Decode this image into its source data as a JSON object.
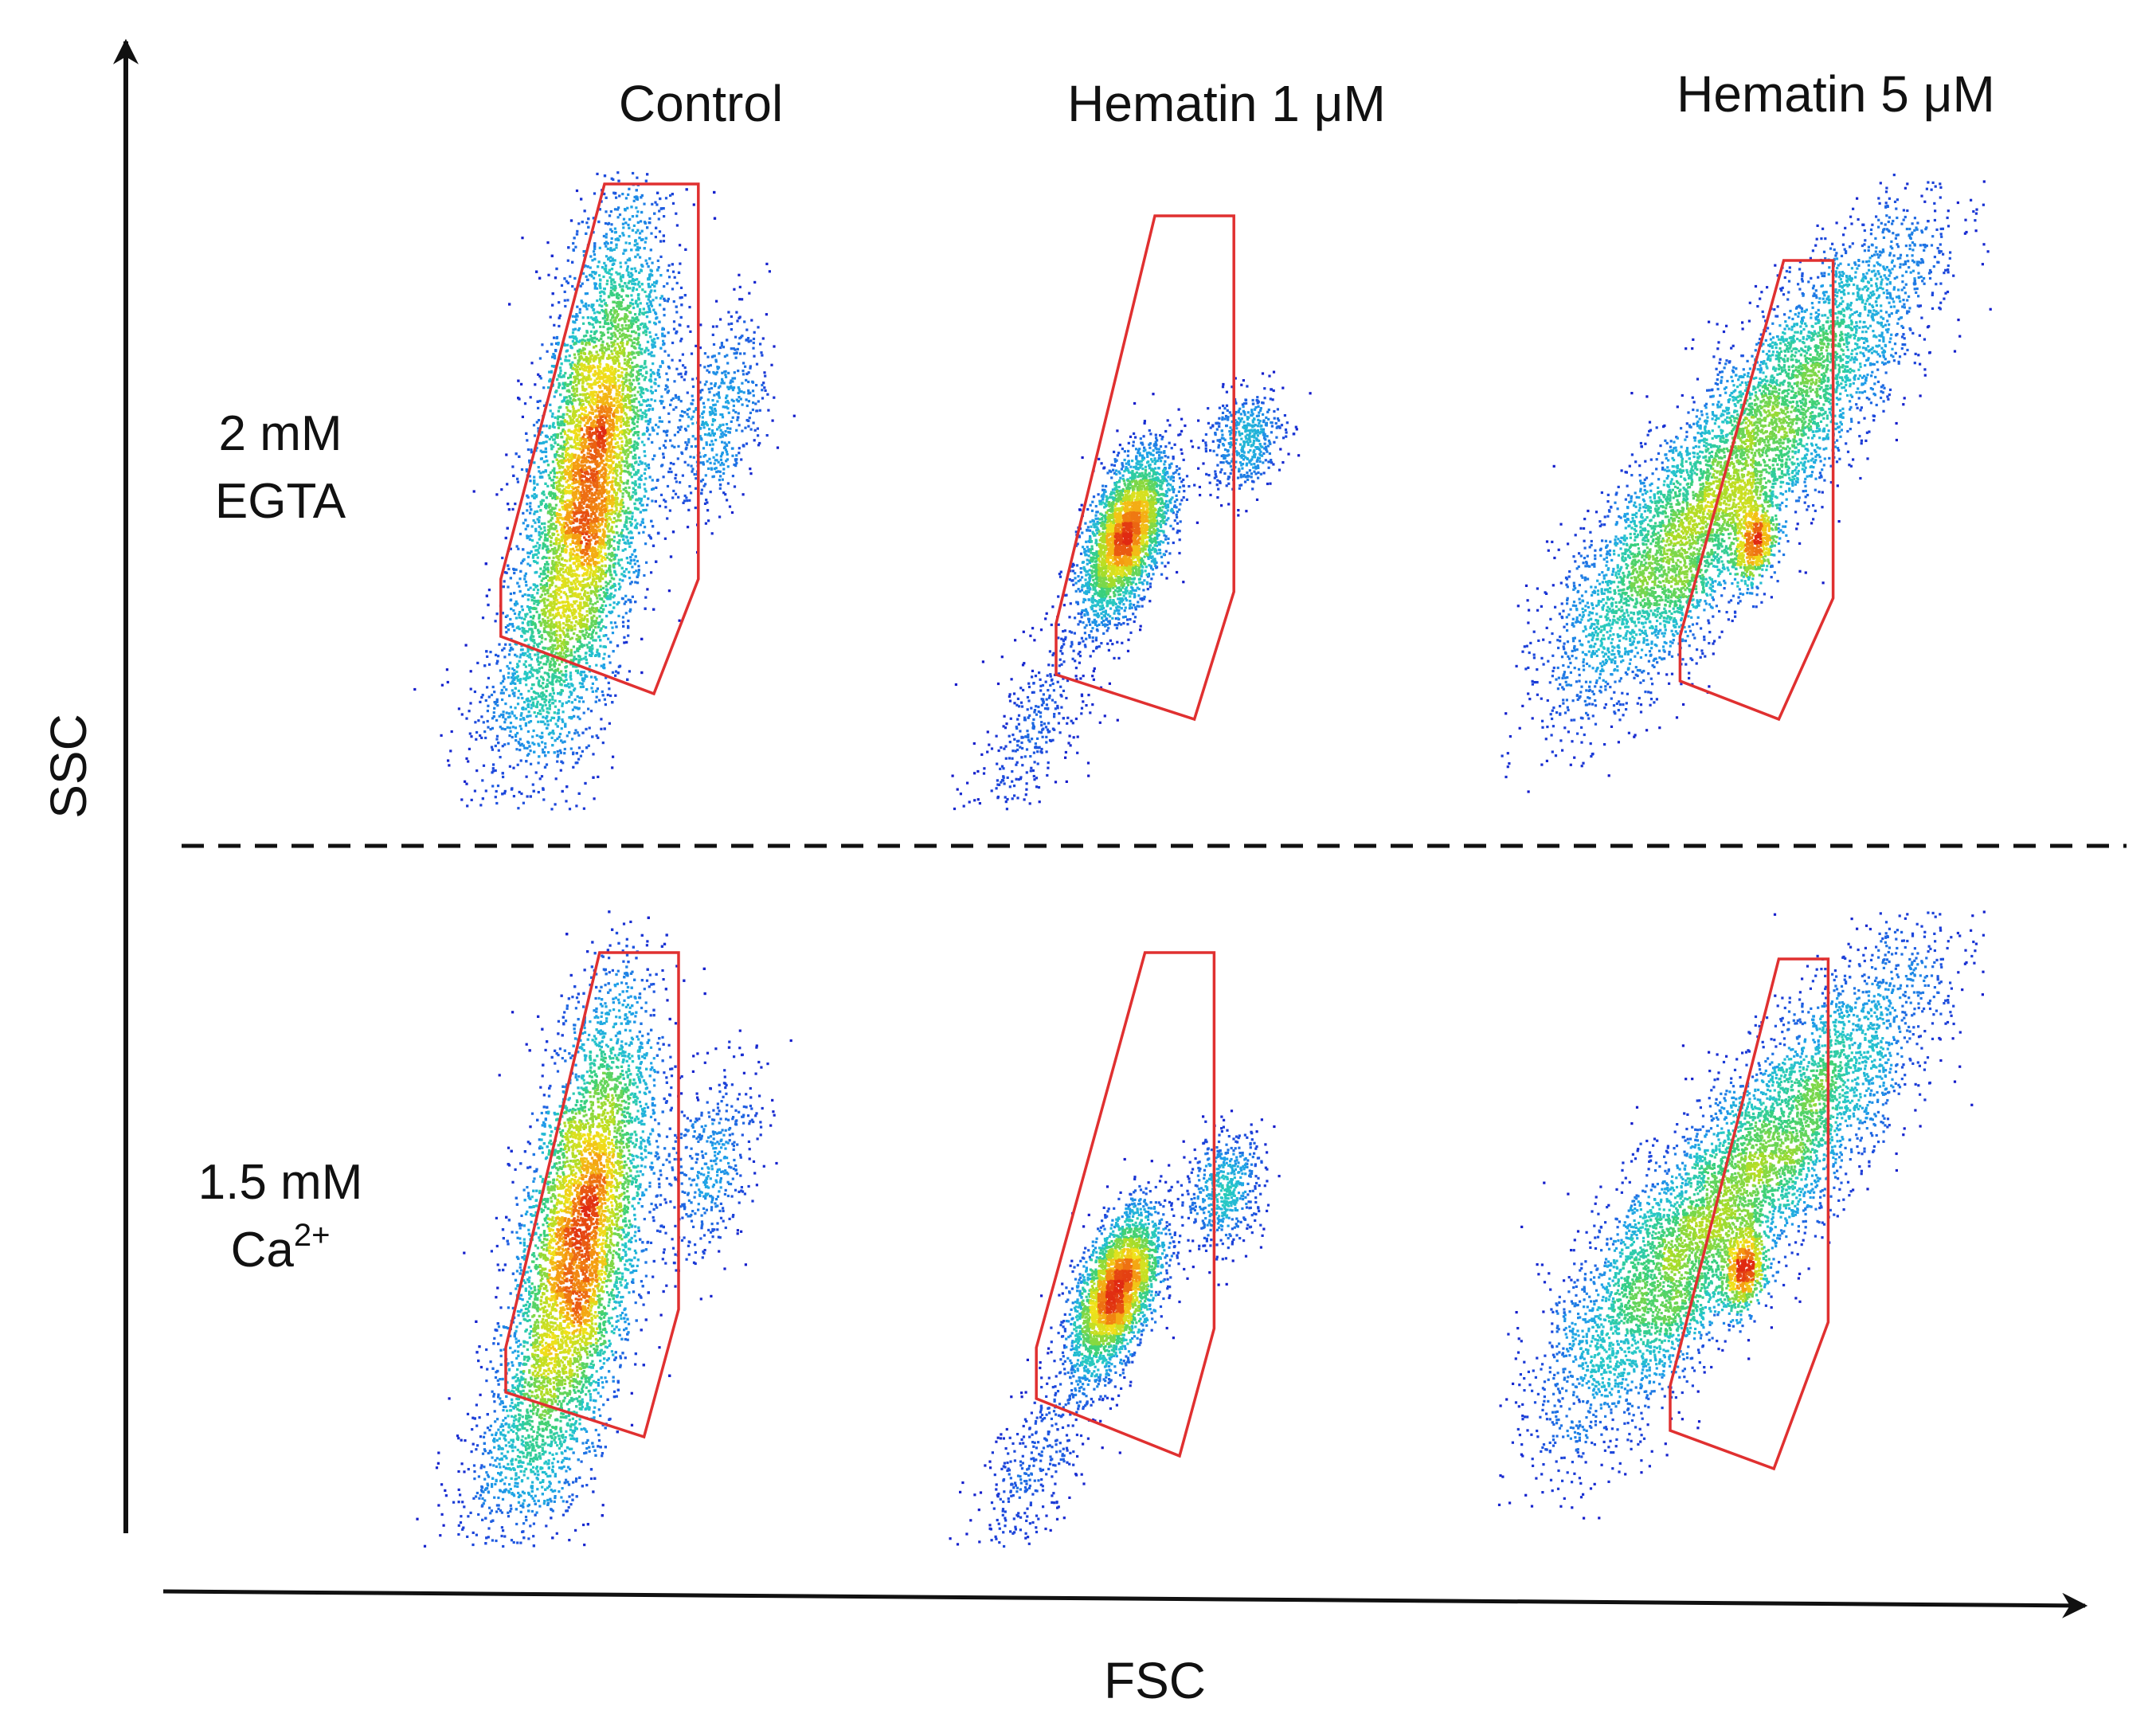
{
  "chart_data": {
    "type": "scatter",
    "title": "",
    "xlabel": "FSC",
    "ylabel": "SSC",
    "column_titles": [
      "Control",
      "Hematin 1 μM",
      "Hematin 5 μM"
    ],
    "row_labels": [
      {
        "line1": "2 mM",
        "line2": "EGTA",
        "sup": ""
      },
      {
        "line1": "1.5 mM",
        "line2": "Ca",
        "sup": "2+"
      }
    ],
    "gate_color": "#e03030",
    "colormap": [
      "#1414c8",
      "#1f55e0",
      "#1fa0e8",
      "#26c8c8",
      "#3ad07a",
      "#a6dc2a",
      "#f0e21a",
      "#f59a12",
      "#e02a12"
    ],
    "panels": [
      {
        "row": 0,
        "col": 0,
        "n": 9000,
        "population": [
          {
            "fsc": 0.42,
            "ssc": 0.52,
            "sd_fsc": 0.07,
            "sd_ssc": 0.2,
            "rho": 0.55,
            "weight": 0.88
          },
          {
            "fsc": 0.68,
            "ssc": 0.62,
            "sd_fsc": 0.05,
            "sd_ssc": 0.08,
            "rho": 0.4,
            "weight": 0.06
          },
          {
            "fsc": 0.3,
            "ssc": 0.22,
            "sd_fsc": 0.07,
            "sd_ssc": 0.09,
            "rho": 0.6,
            "weight": 0.06
          }
        ],
        "gate": [
          [
            0.45,
            0.98
          ],
          [
            0.64,
            0.98
          ],
          [
            0.64,
            0.36
          ],
          [
            0.55,
            0.18
          ],
          [
            0.24,
            0.27
          ],
          [
            0.24,
            0.36
          ]
        ]
      },
      {
        "row": 0,
        "col": 1,
        "n": 4000,
        "population": [
          {
            "fsc": 0.44,
            "ssc": 0.43,
            "sd_fsc": 0.045,
            "sd_ssc": 0.065,
            "rho": 0.55,
            "weight": 0.78
          },
          {
            "fsc": 0.68,
            "ssc": 0.58,
            "sd_fsc": 0.04,
            "sd_ssc": 0.04,
            "rho": 0.2,
            "weight": 0.12
          },
          {
            "fsc": 0.26,
            "ssc": 0.14,
            "sd_fsc": 0.07,
            "sd_ssc": 0.09,
            "rho": 0.7,
            "weight": 0.1
          }
        ],
        "gate": [
          [
            0.5,
            0.93
          ],
          [
            0.66,
            0.93
          ],
          [
            0.66,
            0.34
          ],
          [
            0.58,
            0.14
          ],
          [
            0.3,
            0.21
          ],
          [
            0.3,
            0.29
          ]
        ]
      },
      {
        "row": 0,
        "col": 2,
        "n": 7000,
        "population": [
          {
            "fsc": 0.35,
            "ssc": 0.4,
            "sd_fsc": 0.12,
            "sd_ssc": 0.12,
            "rho": 0.7,
            "weight": 0.45
          },
          {
            "fsc": 0.6,
            "ssc": 0.65,
            "sd_fsc": 0.14,
            "sd_ssc": 0.14,
            "rho": 0.8,
            "weight": 0.48
          },
          {
            "fsc": 0.52,
            "ssc": 0.42,
            "sd_fsc": 0.02,
            "sd_ssc": 0.035,
            "rho": 0.3,
            "weight": 0.07
          }
        ],
        "gate": [
          [
            0.58,
            0.86
          ],
          [
            0.68,
            0.86
          ],
          [
            0.68,
            0.33
          ],
          [
            0.57,
            0.14
          ],
          [
            0.37,
            0.2
          ],
          [
            0.37,
            0.27
          ]
        ]
      },
      {
        "row": 1,
        "col": 0,
        "n": 9000,
        "population": [
          {
            "fsc": 0.4,
            "ssc": 0.48,
            "sd_fsc": 0.07,
            "sd_ssc": 0.19,
            "rho": 0.55,
            "weight": 0.88
          },
          {
            "fsc": 0.66,
            "ssc": 0.6,
            "sd_fsc": 0.05,
            "sd_ssc": 0.08,
            "rho": 0.4,
            "weight": 0.05
          },
          {
            "fsc": 0.28,
            "ssc": 0.18,
            "sd_fsc": 0.07,
            "sd_ssc": 0.09,
            "rho": 0.6,
            "weight": 0.07
          }
        ],
        "gate": [
          [
            0.44,
            0.93
          ],
          [
            0.6,
            0.93
          ],
          [
            0.6,
            0.37
          ],
          [
            0.53,
            0.17
          ],
          [
            0.25,
            0.24
          ],
          [
            0.25,
            0.31
          ]
        ]
      },
      {
        "row": 1,
        "col": 1,
        "n": 4000,
        "population": [
          {
            "fsc": 0.42,
            "ssc": 0.4,
            "sd_fsc": 0.045,
            "sd_ssc": 0.065,
            "rho": 0.55,
            "weight": 0.76
          },
          {
            "fsc": 0.64,
            "ssc": 0.56,
            "sd_fsc": 0.04,
            "sd_ssc": 0.045,
            "rho": 0.2,
            "weight": 0.14
          },
          {
            "fsc": 0.26,
            "ssc": 0.13,
            "sd_fsc": 0.07,
            "sd_ssc": 0.09,
            "rho": 0.7,
            "weight": 0.1
          }
        ],
        "gate": [
          [
            0.48,
            0.93
          ],
          [
            0.62,
            0.93
          ],
          [
            0.62,
            0.34
          ],
          [
            0.55,
            0.14
          ],
          [
            0.26,
            0.23
          ],
          [
            0.26,
            0.31
          ]
        ]
      },
      {
        "row": 1,
        "col": 2,
        "n": 7000,
        "population": [
          {
            "fsc": 0.33,
            "ssc": 0.42,
            "sd_fsc": 0.12,
            "sd_ssc": 0.13,
            "rho": 0.7,
            "weight": 0.45
          },
          {
            "fsc": 0.6,
            "ssc": 0.66,
            "sd_fsc": 0.14,
            "sd_ssc": 0.14,
            "rho": 0.8,
            "weight": 0.48
          },
          {
            "fsc": 0.5,
            "ssc": 0.43,
            "sd_fsc": 0.02,
            "sd_ssc": 0.035,
            "rho": 0.3,
            "weight": 0.07
          }
        ],
        "gate": [
          [
            0.57,
            0.92
          ],
          [
            0.67,
            0.92
          ],
          [
            0.67,
            0.35
          ],
          [
            0.56,
            0.12
          ],
          [
            0.35,
            0.18
          ],
          [
            0.35,
            0.25
          ]
        ]
      }
    ]
  }
}
